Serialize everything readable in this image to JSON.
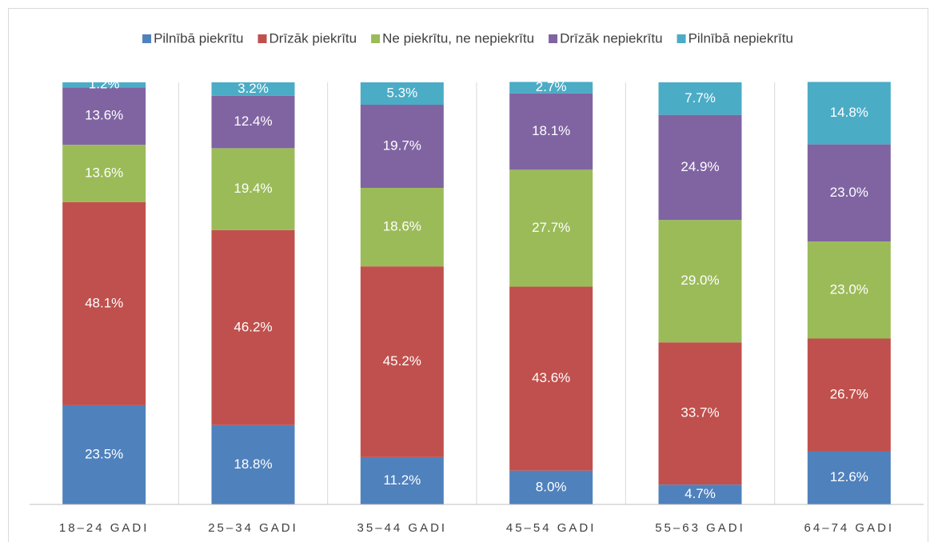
{
  "chart_data": {
    "type": "stacked_bar",
    "categories": [
      "18–24 GADI",
      "25–34 GADI",
      "35–44 GADI",
      "45–54 GADI",
      "55–63 GADI",
      "64–74 GADI"
    ],
    "ylim": [
      0,
      100
    ],
    "series": [
      {
        "name": "Pilnībā piekrītu",
        "color": "#4f81bd",
        "values": [
          23.5,
          18.8,
          11.2,
          8.0,
          4.7,
          12.6
        ],
        "value_labels": [
          "23.5%",
          "18.8%",
          "11.2%",
          "8.0%",
          "4.7%",
          "12.6%"
        ]
      },
      {
        "name": "Drīzāk piekrītu",
        "color": "#c0504d",
        "values": [
          48.1,
          46.2,
          45.2,
          43.6,
          33.7,
          26.7
        ],
        "value_labels": [
          "48.1%",
          "46.2%",
          "45.2%",
          "43.6%",
          "33.7%",
          "26.7%"
        ]
      },
      {
        "name": "Ne piekrītu, ne nepiekrītu",
        "color": "#9bbb59",
        "values": [
          13.6,
          19.4,
          18.6,
          27.7,
          29.0,
          23.0
        ],
        "value_labels": [
          "13.6%",
          "19.4%",
          "18.6%",
          "27.7%",
          "29.0%",
          "23.0%"
        ]
      },
      {
        "name": "Drīzāk nepiekrītu",
        "color": "#8064a2",
        "values": [
          13.6,
          12.4,
          19.7,
          18.1,
          24.9,
          23.0
        ],
        "value_labels": [
          "13.6%",
          "12.4%",
          "19.7%",
          "18.1%",
          "24.9%",
          "23.0%"
        ]
      },
      {
        "name": "Pilnībā nepiekrītu",
        "color": "#4bacc6",
        "values": [
          1.2,
          3.2,
          5.3,
          2.7,
          7.7,
          14.8
        ],
        "value_labels": [
          "1.2%",
          "3.2%",
          "5.3%",
          "2.7%",
          "7.7%",
          "14.8%"
        ]
      }
    ],
    "legend": "top"
  }
}
